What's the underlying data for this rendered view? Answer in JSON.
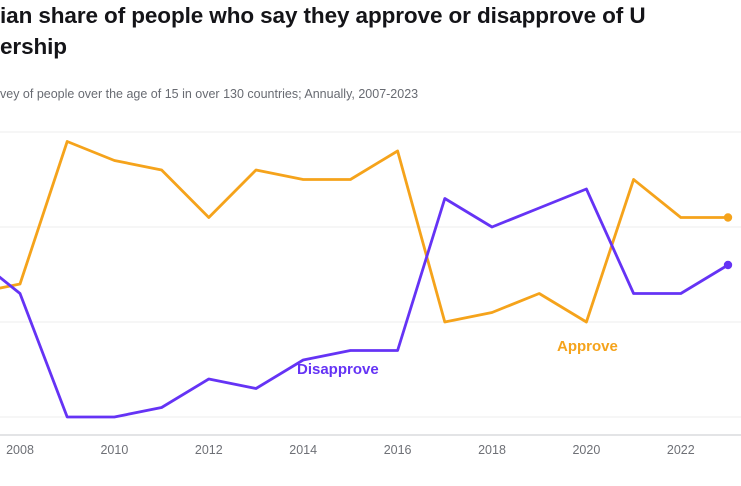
{
  "header": {
    "title_line1": "ian share of people who say they approve or disapprove of U",
    "title_line2": "ership",
    "subtitle": "vey of people over the age of 15 in over 130 countries; Annually, 2007-2023"
  },
  "chart_data": {
    "type": "line",
    "x": [
      2007,
      2008,
      2009,
      2010,
      2011,
      2012,
      2013,
      2014,
      2015,
      2016,
      2017,
      2018,
      2019,
      2020,
      2021,
      2022,
      2023
    ],
    "series": [
      {
        "name": "Approve",
        "color": "#F5A31B",
        "values": [
          33,
          34,
          49,
          47,
          46,
          41,
          46,
          45,
          45,
          48,
          30,
          31,
          33,
          30,
          45,
          41,
          41
        ]
      },
      {
        "name": "Disapprove",
        "color": "#6533F5",
        "values": [
          37,
          33,
          20,
          20,
          21,
          24,
          23,
          26,
          27,
          27,
          43,
          40,
          42,
          44,
          33,
          33,
          36
        ]
      }
    ],
    "x_ticks": [
      "2008",
      "2010",
      "2012",
      "2014",
      "2016",
      "2018",
      "2020",
      "2022"
    ],
    "ylim": [
      18,
      53
    ],
    "y_gridlines": [
      20,
      30,
      40,
      50
    ],
    "grid": "horizontal",
    "legend": "inline-labels",
    "axis_color": "#d2d3d7",
    "gridline_color": "#ececee",
    "end_dots": true
  }
}
